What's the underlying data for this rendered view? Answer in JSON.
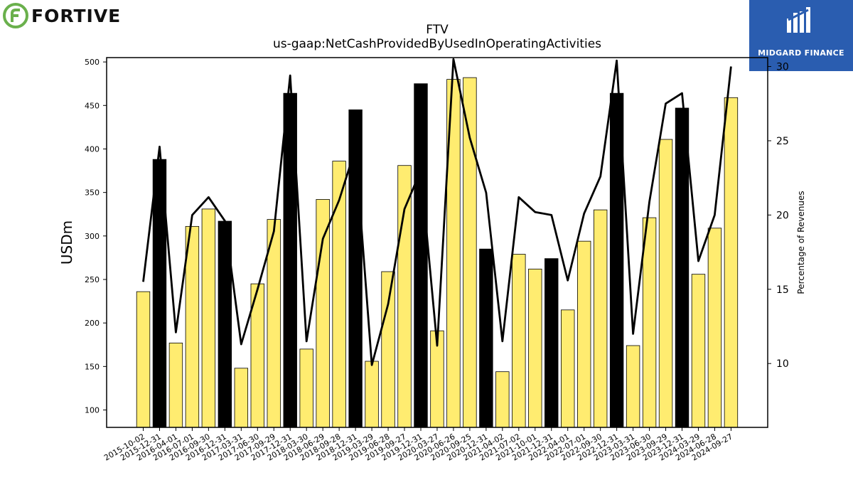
{
  "brand": {
    "left_logo_text": "FORTIVE",
    "right_logo_text": "MIDGARD FINANCE"
  },
  "chart_data": {
    "type": "bar",
    "title": "FTV",
    "subtitle": "us-gaap:NetCashProvidedByUsedInOperatingActivities",
    "ylabel": "USDm",
    "y2label": "Percentage of Revenues",
    "ylim": [
      80,
      505
    ],
    "y2lim": [
      5.7,
      30.6
    ],
    "yticks": [
      100,
      150,
      200,
      250,
      300,
      350,
      400,
      450,
      500
    ],
    "y2ticks": [
      10,
      15,
      20,
      25,
      30
    ],
    "categories": [
      "2015-10-02",
      "2015-12-31",
      "2016-04-01",
      "2016-07-01",
      "2016-09-30",
      "2016-12-31",
      "2017-03-31",
      "2017-06-30",
      "2017-09-29",
      "2017-12-31",
      "2018-03-30",
      "2018-06-29",
      "2018-09-28",
      "2018-12-31",
      "2019-03-29",
      "2019-06-28",
      "2019-09-27",
      "2019-12-31",
      "2020-03-27",
      "2020-06-26",
      "2020-09-25",
      "2020-12-31",
      "2021-04-02",
      "2021-07-02",
      "2021-10-01",
      "2021-12-31",
      "2022-04-01",
      "2022-07-01",
      "2022-09-30",
      "2022-12-31",
      "2023-03-31",
      "2023-06-30",
      "2023-09-29",
      "2023-12-31",
      "2024-03-29",
      "2024-06-28",
      "2024-09-27"
    ],
    "series": [
      {
        "name": "",
        "kind": "bar",
        "axis": "left",
        "values": [
          236,
          388,
          177,
          311,
          331,
          317,
          148,
          245,
          319,
          464,
          170,
          342,
          386,
          445,
          156,
          259,
          381,
          475,
          191,
          480,
          482,
          285,
          144,
          279,
          262,
          274,
          215,
          294,
          330,
          464,
          174,
          321,
          411,
          447,
          256,
          309,
          459
        ],
        "year_end_color": "#000000",
        "quarter_color": "#ffec70"
      },
      {
        "name": "",
        "kind": "line",
        "axis": "right",
        "values": [
          15.5,
          24.6,
          12.1,
          20.0,
          21.2,
          19.6,
          11.3,
          15.0,
          18.9,
          29.4,
          11.5,
          18.4,
          21.0,
          24.5,
          9.9,
          14.0,
          20.4,
          23.0,
          11.2,
          30.5,
          25.2,
          21.5,
          11.5,
          21.2,
          20.2,
          20.0,
          15.6,
          20.1,
          22.6,
          30.4,
          12.0,
          20.9,
          27.5,
          28.2,
          16.9,
          20.0,
          30.0
        ],
        "color": "#000000"
      }
    ],
    "grid": false,
    "legend": "none"
  }
}
